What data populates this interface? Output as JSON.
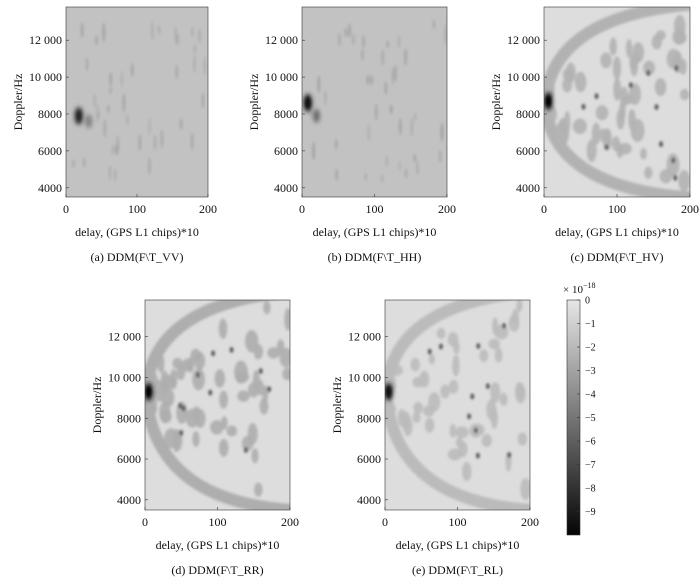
{
  "chart_data": [
    {
      "type": "heatmap",
      "id": "vv",
      "caption": "(a) DDM(F\\T_VV)",
      "xlabel": "delay, (GPS L1 chips)*10",
      "ylabel": "Doppler/Hz",
      "xlim": [
        0,
        200
      ],
      "ylim": [
        3500,
        13800
      ],
      "xticks": [
        0,
        100,
        200
      ],
      "xtick_labels": [
        "0",
        "100",
        "200"
      ],
      "yticks": [
        4000,
        6000,
        8000,
        10000,
        12000
      ],
      "ytick_labels": [
        "4000",
        "6000",
        "8000",
        "10 000",
        "12 000"
      ],
      "background_level": -1.6,
      "peak": {
        "delay": 18,
        "doppler": 7900,
        "value": -7.5
      },
      "secondary": {
        "delay": 32,
        "doppler": 7600,
        "value": -4.5
      },
      "spread": 0.55
    },
    {
      "type": "heatmap",
      "id": "hh",
      "caption": "(b) DDM(F\\T_HH)",
      "xlabel": "delay, (GPS L1 chips)*10",
      "ylabel": "Doppler/Hz",
      "xlim": [
        0,
        200
      ],
      "ylim": [
        3500,
        13800
      ],
      "xticks": [
        0,
        100,
        200
      ],
      "xtick_labels": [
        "0",
        "100",
        "200"
      ],
      "yticks": [
        4000,
        6000,
        8000,
        10000,
        12000
      ],
      "ytick_labels": [
        "4000",
        "6000",
        "8000",
        "10 000",
        "12 000"
      ],
      "background_level": -1.6,
      "peak": {
        "delay": 8,
        "doppler": 8600,
        "value": -8.5
      },
      "secondary": {
        "delay": 20,
        "doppler": 7900,
        "value": -5.5
      },
      "spread": 0.65
    },
    {
      "type": "heatmap",
      "id": "hv",
      "caption": "(c) DDM(F\\T_HV)",
      "xlabel": "delay, (GPS L1 chips)*10",
      "ylabel": "Doppler/Hz",
      "xlim": [
        0,
        200
      ],
      "ylim": [
        3500,
        13800
      ],
      "xticks": [
        0,
        100,
        200
      ],
      "xtick_labels": [
        "0",
        "100",
        "200"
      ],
      "yticks": [
        4000,
        6000,
        8000,
        10000,
        12000
      ],
      "ytick_labels": [
        "4000",
        "6000",
        "8000",
        "10 000",
        "12 000"
      ],
      "background_level": -0.4,
      "peak": {
        "delay": 6,
        "doppler": 8700,
        "value": -9.0
      },
      "apex": {
        "delay": 0,
        "doppler": 8600
      },
      "envelope_top": 13600,
      "envelope_bottom": 3800,
      "pattern_level": -2.3
    },
    {
      "type": "heatmap",
      "id": "rr",
      "caption": "(d) DDM(F\\T_RR)",
      "xlabel": "delay, (GPS L1 chips)*10",
      "ylabel": "Doppler/Hz",
      "xlim": [
        0,
        200
      ],
      "ylim": [
        3500,
        13800
      ],
      "xticks": [
        0,
        100,
        200
      ],
      "xtick_labels": [
        "0",
        "100",
        "200"
      ],
      "yticks": [
        4000,
        6000,
        8000,
        10000,
        12000
      ],
      "ytick_labels": [
        "4000",
        "6000",
        "8000",
        "10 000",
        "12 000"
      ],
      "background_level": -0.4,
      "peak": {
        "delay": 5,
        "doppler": 9300,
        "value": -9.0
      },
      "apex": {
        "delay": 0,
        "doppler": 9300
      },
      "envelope_top": 13900,
      "envelope_bottom": 3800,
      "pattern_level": -2.5
    },
    {
      "type": "heatmap",
      "id": "rl",
      "caption": "(e) DDM(F\\T_RL)",
      "xlabel": "delay, (GPS L1 chips)*10",
      "ylabel": "Doppler/Hz",
      "xlim": [
        0,
        200
      ],
      "ylim": [
        3500,
        13800
      ],
      "xticks": [
        0,
        100,
        200
      ],
      "xtick_labels": [
        "0",
        "100",
        "200"
      ],
      "yticks": [
        4000,
        6000,
        8000,
        10000,
        12000
      ],
      "ytick_labels": [
        "4000",
        "6000",
        "8000",
        "10 000",
        "12 000"
      ],
      "background_level": -0.4,
      "peak": {
        "delay": 5,
        "doppler": 9300,
        "value": -8.5
      },
      "apex": {
        "delay": 0,
        "doppler": 9300
      },
      "envelope_top": 13900,
      "envelope_bottom": 3800,
      "pattern_level": -1.9
    }
  ],
  "colorbar": {
    "multiplier_base": "× 10",
    "multiplier_exp": "−18",
    "min": -10,
    "max": 0,
    "ticks": [
      0,
      -1,
      -2,
      -3,
      -4,
      -5,
      -6,
      -7,
      -8,
      -9
    ],
    "tick_labels": [
      "0",
      "−1",
      "−2",
      "−3",
      "−4",
      "−5",
      "−6",
      "−7",
      "−8",
      "−9"
    ],
    "colormap": "gray"
  }
}
